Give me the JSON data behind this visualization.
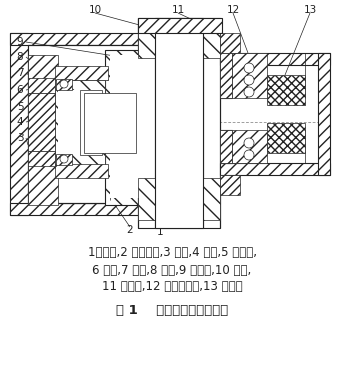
{
  "title": "图 1    液压卡盘组件结构图",
  "caption_line1": "1卡瓦座,2 磹形弹簧,3 油缸,4 活塞,5 支承套,",
  "caption_line2": "6 卡圈,7 卡瓦,8 罩壳,9 保护套,10 护盖,",
  "caption_line3": "11 圆螺母,12 推力球轴承,13 密封件",
  "bg_color": "#ffffff",
  "line_color": "#222222"
}
